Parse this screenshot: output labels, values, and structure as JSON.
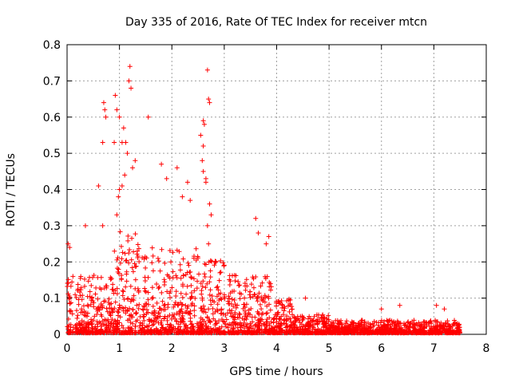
{
  "chart_data": {
    "type": "scatter",
    "title": "Day 335 of 2016, Rate Of TEC Index for receiver mtcn",
    "xlabel": "GPS time / hours",
    "ylabel": "ROTI / TECUs",
    "xlim": [
      0,
      8
    ],
    "ylim": [
      0,
      0.8
    ],
    "x_ticks": [
      "0",
      "1",
      "2",
      "3",
      "4",
      "5",
      "6",
      "7",
      "8"
    ],
    "y_ticks": [
      "0",
      "0.1",
      "0.2",
      "0.3",
      "0.4",
      "0.5",
      "0.6",
      "0.7",
      "0.8"
    ],
    "grid": true,
    "marker": "+",
    "marker_color": "#ff0000",
    "series": [
      {
        "name": "ROTI",
        "points": [
          [
            0.02,
            0.25
          ],
          [
            0.05,
            0.24
          ],
          [
            0.35,
            0.3
          ],
          [
            0.6,
            0.41
          ],
          [
            0.68,
            0.3
          ],
          [
            0.68,
            0.53
          ],
          [
            0.7,
            0.64
          ],
          [
            0.72,
            0.62
          ],
          [
            0.74,
            0.6
          ],
          [
            0.9,
            0.53
          ],
          [
            0.92,
            0.66
          ],
          [
            0.95,
            0.62
          ],
          [
            1.0,
            0.6
          ],
          [
            1.05,
            0.53
          ],
          [
            1.08,
            0.57
          ],
          [
            1.12,
            0.53
          ],
          [
            1.15,
            0.5
          ],
          [
            1.18,
            0.7
          ],
          [
            1.2,
            0.74
          ],
          [
            1.22,
            0.68
          ],
          [
            1.25,
            0.46
          ],
          [
            1.3,
            0.48
          ],
          [
            1.1,
            0.44
          ],
          [
            1.05,
            0.41
          ],
          [
            1.0,
            0.4
          ],
          [
            0.98,
            0.38
          ],
          [
            0.95,
            0.33
          ],
          [
            1.55,
            0.6
          ],
          [
            1.8,
            0.47
          ],
          [
            1.9,
            0.43
          ],
          [
            2.1,
            0.46
          ],
          [
            2.3,
            0.42
          ],
          [
            2.35,
            0.37
          ],
          [
            2.2,
            0.38
          ],
          [
            2.6,
            0.59
          ],
          [
            2.62,
            0.58
          ],
          [
            2.55,
            0.55
          ],
          [
            2.6,
            0.52
          ],
          [
            2.58,
            0.48
          ],
          [
            2.6,
            0.45
          ],
          [
            2.65,
            0.43
          ],
          [
            2.68,
            0.73
          ],
          [
            2.7,
            0.65
          ],
          [
            2.72,
            0.64
          ],
          [
            2.65,
            0.42
          ],
          [
            2.72,
            0.36
          ],
          [
            2.75,
            0.33
          ],
          [
            2.68,
            0.3
          ],
          [
            2.7,
            0.25
          ],
          [
            3.6,
            0.32
          ],
          [
            3.65,
            0.28
          ],
          [
            3.85,
            0.27
          ],
          [
            3.8,
            0.25
          ],
          [
            4.55,
            0.1
          ],
          [
            6.0,
            0.07
          ],
          [
            6.35,
            0.08
          ],
          [
            7.05,
            0.08
          ],
          [
            7.2,
            0.07
          ]
        ]
      }
    ]
  }
}
